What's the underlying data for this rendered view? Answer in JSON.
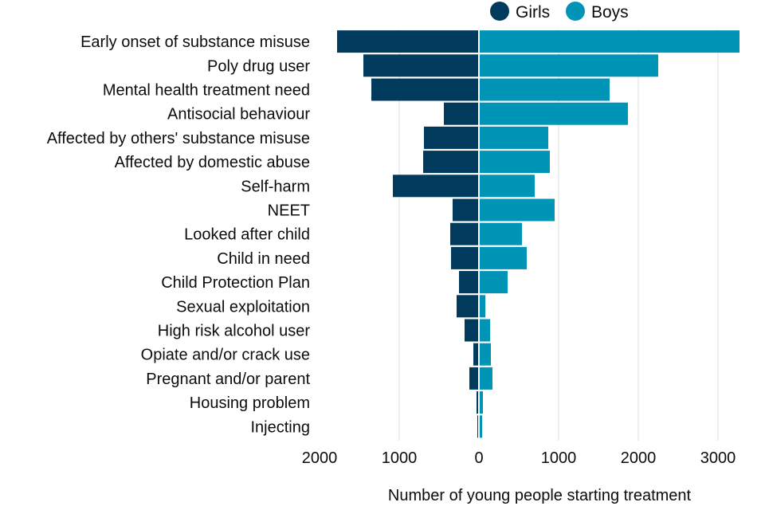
{
  "chart_data": {
    "type": "bar",
    "orientation": "horizontal-diverging",
    "title": "",
    "xlabel": "Number of young people starting treatment",
    "ylabel": "",
    "xlim": [
      -2000,
      3300
    ],
    "x_ticks": [
      -2000,
      -1000,
      0,
      1000,
      2000,
      3000
    ],
    "x_tick_labels": [
      "2000",
      "1000",
      "0",
      "1000",
      "2000",
      "3000"
    ],
    "grid": "vertical",
    "legend_position": "top-right",
    "categories": [
      "Early onset of substance misuse",
      "Poly drug user",
      "Mental health treatment need",
      "Antisocial behaviour",
      "Affected by others' substance misuse",
      "Affected by domestic abuse",
      "Self-harm",
      "NEET",
      "Looked after child",
      "Child in need",
      "Child Protection Plan",
      "Sexual exploitation",
      "High risk alcohol user",
      "Opiate and/or crack use",
      "Pregnant and/or parent",
      "Housing problem",
      "Injecting"
    ],
    "series": [
      {
        "name": "Girls",
        "color": "#003a5d",
        "direction": "left",
        "values": [
          1780,
          1450,
          1350,
          440,
          690,
          700,
          1080,
          330,
          360,
          350,
          250,
          280,
          180,
          70,
          120,
          30,
          20
        ]
      },
      {
        "name": "Boys",
        "color": "#0095b6",
        "direction": "right",
        "values": [
          3270,
          2250,
          1640,
          1870,
          870,
          890,
          700,
          950,
          540,
          600,
          360,
          80,
          140,
          150,
          170,
          50,
          40
        ]
      }
    ]
  }
}
